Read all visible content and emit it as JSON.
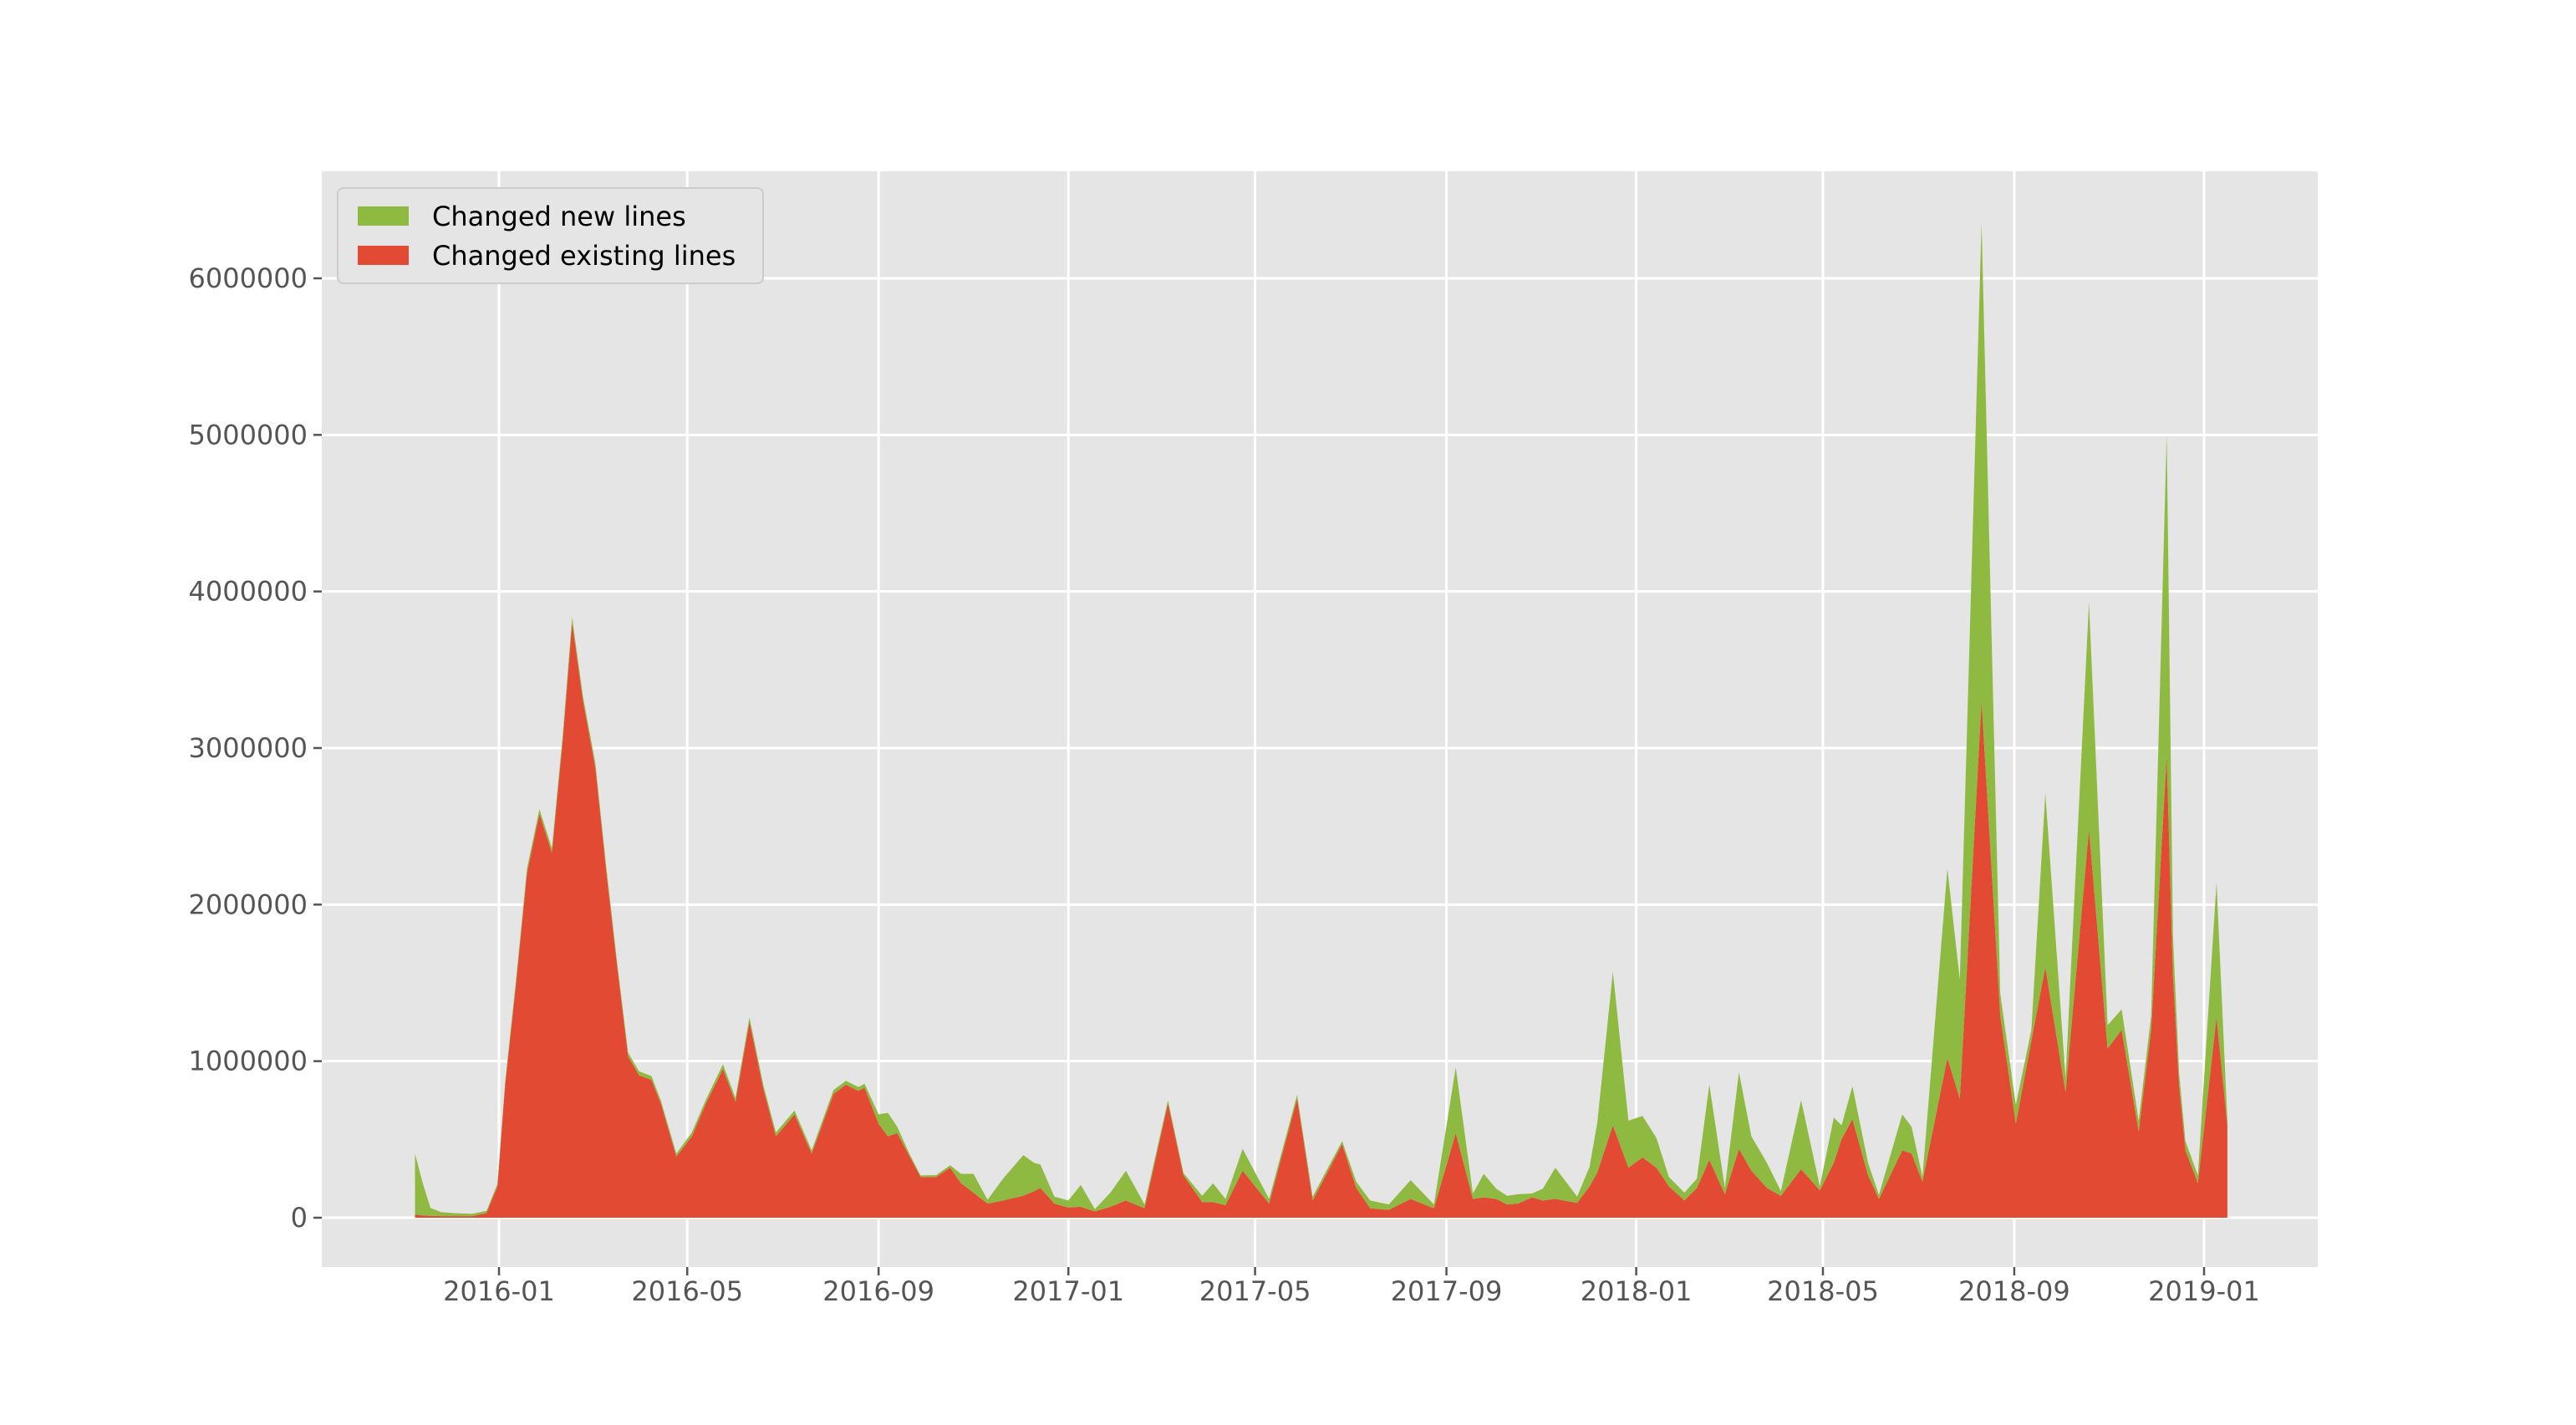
{
  "figure": {
    "background": "#ffffff",
    "plot_background": "#e5e5e5",
    "grid_color": "#ffffff",
    "tick_color": "#555555",
    "tick_label_color": "#555555",
    "legend_text_color": "#000000",
    "legend_border_color": "#cccccc",
    "legend_background": "#e5e5e5"
  },
  "legend": {
    "items": [
      {
        "label": "Changed new lines",
        "color": "#8EBA42"
      },
      {
        "label": "Changed existing lines",
        "color": "#E24A33"
      }
    ]
  },
  "chart_data": {
    "type": "area",
    "stacked": true,
    "title": "",
    "xlabel": "",
    "ylabel": "",
    "legend_position": "upper left",
    "grid": true,
    "x_tick_labels": [
      "2016-01",
      "2016-05",
      "2016-09",
      "2017-01",
      "2017-05",
      "2017-09",
      "2018-01",
      "2018-05",
      "2018-09",
      "2019-01"
    ],
    "y_tick_labels": [
      "0",
      "1000000",
      "2000000",
      "3000000",
      "4000000",
      "5000000",
      "6000000"
    ],
    "y_ticks": [
      0,
      1000000,
      2000000,
      3000000,
      4000000,
      5000000,
      6000000
    ],
    "xlim": [
      "2015-09-24",
      "2019-03-13"
    ],
    "ylim": [
      -315000,
      6690000
    ],
    "stack_order_bottom_to_top": [
      "Changed existing lines",
      "Changed new lines"
    ],
    "columns": [
      "date",
      "existing_lines",
      "new_lines"
    ],
    "points": [
      [
        "2015-11-08",
        20000,
        390000
      ],
      [
        "2015-11-13",
        15000,
        205000
      ],
      [
        "2015-11-18",
        12000,
        50000
      ],
      [
        "2015-11-25",
        10000,
        25000
      ],
      [
        "2015-12-05",
        10000,
        18000
      ],
      [
        "2015-12-15",
        10000,
        15000
      ],
      [
        "2015-12-24",
        30000,
        14000
      ],
      [
        "2015-12-31",
        200000,
        15000
      ],
      [
        "2016-01-05",
        850000,
        20000
      ],
      [
        "2016-01-12",
        1500000,
        25000
      ],
      [
        "2016-01-19",
        2200000,
        30000
      ],
      [
        "2016-01-27",
        2580000,
        30000
      ],
      [
        "2016-02-04",
        2330000,
        30000
      ],
      [
        "2016-02-11",
        3050000,
        35000
      ],
      [
        "2016-02-17",
        3800000,
        35000
      ],
      [
        "2016-02-24",
        3300000,
        30000
      ],
      [
        "2016-03-03",
        2870000,
        30000
      ],
      [
        "2016-03-10",
        2210000,
        30000
      ],
      [
        "2016-03-17",
        1600000,
        25000
      ],
      [
        "2016-03-24",
        1030000,
        25000
      ],
      [
        "2016-03-31",
        910000,
        25000
      ],
      [
        "2016-04-08",
        880000,
        25000
      ],
      [
        "2016-04-14",
        730000,
        20000
      ],
      [
        "2016-04-24",
        390000,
        20000
      ],
      [
        "2016-05-04",
        520000,
        25000
      ],
      [
        "2016-05-13",
        730000,
        25000
      ],
      [
        "2016-05-24",
        950000,
        30000
      ],
      [
        "2016-06-01",
        740000,
        25000
      ],
      [
        "2016-06-10",
        1250000,
        30000
      ],
      [
        "2016-06-19",
        820000,
        25000
      ],
      [
        "2016-06-27",
        520000,
        25000
      ],
      [
        "2016-07-09",
        660000,
        25000
      ],
      [
        "2016-07-20",
        410000,
        20000
      ],
      [
        "2016-08-03",
        790000,
        25000
      ],
      [
        "2016-08-11",
        850000,
        25000
      ],
      [
        "2016-08-19",
        810000,
        25000
      ],
      [
        "2016-08-23",
        830000,
        25000
      ],
      [
        "2016-09-01",
        600000,
        60000
      ],
      [
        "2016-09-07",
        520000,
        150000
      ],
      [
        "2016-09-13",
        540000,
        40000
      ],
      [
        "2016-09-21",
        390000,
        15000
      ],
      [
        "2016-09-28",
        260000,
        10000
      ],
      [
        "2016-10-08",
        260000,
        12000
      ],
      [
        "2016-10-17",
        320000,
        15000
      ],
      [
        "2016-10-24",
        220000,
        60000
      ],
      [
        "2016-11-01",
        160000,
        120000
      ],
      [
        "2016-11-10",
        90000,
        25000
      ],
      [
        "2016-11-20",
        110000,
        140000
      ],
      [
        "2016-12-03",
        140000,
        260000
      ],
      [
        "2016-12-10",
        170000,
        180000
      ],
      [
        "2016-12-14",
        190000,
        150000
      ],
      [
        "2016-12-23",
        90000,
        45000
      ],
      [
        "2017-01-01",
        65000,
        45000
      ],
      [
        "2017-01-09",
        70000,
        140000
      ],
      [
        "2017-01-18",
        40000,
        15000
      ],
      [
        "2017-01-28",
        70000,
        90000
      ],
      [
        "2017-02-07",
        110000,
        190000
      ],
      [
        "2017-02-19",
        60000,
        25000
      ],
      [
        "2017-03-06",
        730000,
        20000
      ],
      [
        "2017-03-16",
        270000,
        15000
      ],
      [
        "2017-03-28",
        100000,
        40000
      ],
      [
        "2017-04-04",
        100000,
        120000
      ],
      [
        "2017-04-12",
        80000,
        40000
      ],
      [
        "2017-04-23",
        300000,
        140000
      ],
      [
        "2017-05-10",
        90000,
        30000
      ],
      [
        "2017-05-28",
        760000,
        25000
      ],
      [
        "2017-06-07",
        110000,
        25000
      ],
      [
        "2017-06-26",
        470000,
        20000
      ],
      [
        "2017-07-05",
        190000,
        40000
      ],
      [
        "2017-07-14",
        60000,
        50000
      ],
      [
        "2017-07-26",
        50000,
        35000
      ],
      [
        "2017-08-09",
        120000,
        120000
      ],
      [
        "2017-08-24",
        60000,
        25000
      ],
      [
        "2017-09-07",
        540000,
        420000
      ],
      [
        "2017-09-18",
        120000,
        35000
      ],
      [
        "2017-09-25",
        130000,
        150000
      ],
      [
        "2017-10-03",
        120000,
        65000
      ],
      [
        "2017-10-10",
        85000,
        55000
      ],
      [
        "2017-10-17",
        90000,
        60000
      ],
      [
        "2017-10-26",
        130000,
        25000
      ],
      [
        "2017-11-02",
        110000,
        75000
      ],
      [
        "2017-11-10",
        120000,
        200000
      ],
      [
        "2017-11-24",
        95000,
        40000
      ],
      [
        "2017-12-02",
        200000,
        125000
      ],
      [
        "2017-12-07",
        290000,
        320000
      ],
      [
        "2017-12-17",
        590000,
        980000
      ],
      [
        "2017-12-27",
        320000,
        300000
      ],
      [
        "2018-01-05",
        385000,
        265000
      ],
      [
        "2018-01-14",
        320000,
        190000
      ],
      [
        "2018-01-22",
        200000,
        60000
      ],
      [
        "2018-02-01",
        110000,
        50000
      ],
      [
        "2018-02-09",
        190000,
        60000
      ],
      [
        "2018-02-17",
        370000,
        480000
      ],
      [
        "2018-02-27",
        150000,
        40000
      ],
      [
        "2018-03-08",
        440000,
        490000
      ],
      [
        "2018-03-16",
        300000,
        220000
      ],
      [
        "2018-03-26",
        190000,
        160000
      ],
      [
        "2018-04-04",
        140000,
        30000
      ],
      [
        "2018-04-17",
        310000,
        440000
      ],
      [
        "2018-04-29",
        175000,
        25000
      ],
      [
        "2018-05-08",
        350000,
        290000
      ],
      [
        "2018-05-13",
        500000,
        90000
      ],
      [
        "2018-05-20",
        630000,
        210000
      ],
      [
        "2018-05-30",
        270000,
        80000
      ],
      [
        "2018-06-06",
        120000,
        25000
      ],
      [
        "2018-06-21",
        430000,
        230000
      ],
      [
        "2018-06-27",
        410000,
        170000
      ],
      [
        "2018-07-04",
        230000,
        30000
      ],
      [
        "2018-07-20",
        1020000,
        1210000
      ],
      [
        "2018-07-28",
        760000,
        760000
      ],
      [
        "2018-08-11",
        3300000,
        3050000
      ],
      [
        "2018-08-23",
        1290000,
        140000
      ],
      [
        "2018-09-02",
        600000,
        120000
      ],
      [
        "2018-09-12",
        1130000,
        70000
      ],
      [
        "2018-09-21",
        1600000,
        1110000
      ],
      [
        "2018-10-04",
        800000,
        90000
      ],
      [
        "2018-10-19",
        2480000,
        1450000
      ],
      [
        "2018-10-31",
        1080000,
        150000
      ],
      [
        "2018-11-09",
        1200000,
        130000
      ],
      [
        "2018-11-20",
        550000,
        70000
      ],
      [
        "2018-11-28",
        1200000,
        90000
      ],
      [
        "2018-12-08",
        2950000,
        2050000
      ],
      [
        "2018-12-12",
        1550000,
        250000
      ],
      [
        "2018-12-16",
        840000,
        80000
      ],
      [
        "2018-12-20",
        430000,
        60000
      ],
      [
        "2018-12-28",
        220000,
        50000
      ],
      [
        "2019-01-09",
        1280000,
        860000
      ],
      [
        "2019-01-16",
        590000,
        30000
      ]
    ],
    "series": [
      {
        "name": "Changed existing lines",
        "color": "#E24A33"
      },
      {
        "name": "Changed new lines",
        "color": "#8EBA42"
      }
    ]
  }
}
